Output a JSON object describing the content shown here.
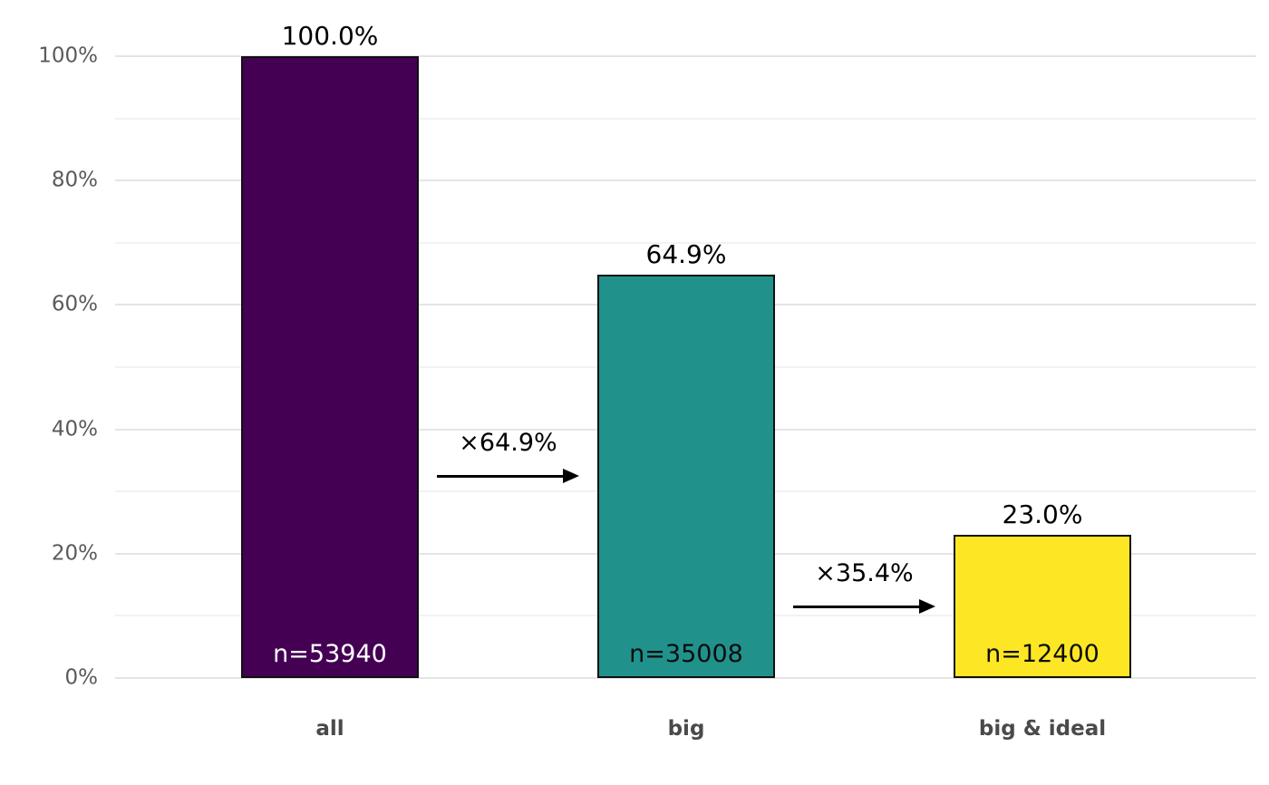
{
  "chart_data": {
    "type": "bar",
    "title": "",
    "xlabel": "",
    "ylabel": "",
    "categories": [
      "all",
      "big",
      "big & ideal"
    ],
    "values": [
      100.0,
      64.9,
      23.0
    ],
    "counts": [
      53940,
      35008,
      12400
    ],
    "bars": [
      {
        "category": "all",
        "pct": 100.0,
        "pct_label": "100.0%",
        "n_label": "n=53940",
        "color": "#440154",
        "n_label_color": "#ffffff"
      },
      {
        "category": "big",
        "pct": 64.9,
        "pct_label": "64.9%",
        "n_label": "n=35008",
        "color": "#21918c",
        "n_label_color": "#0d0d0d"
      },
      {
        "category": "big & ideal",
        "pct": 23.0,
        "pct_label": "23.0%",
        "n_label": "n=12400",
        "color": "#fde725",
        "n_label_color": "#0d0d0d"
      }
    ],
    "transitions": [
      {
        "label": "×64.9%",
        "from_bar": 0,
        "to_bar": 1
      },
      {
        "label": "×35.4%",
        "from_bar": 1,
        "to_bar": 2
      }
    ],
    "y_axis": {
      "ylim": [
        0,
        100
      ],
      "major_ticks_pct": [
        0,
        20,
        40,
        60,
        80,
        100
      ],
      "major_tick_labels": [
        "0%",
        "20%",
        "40%",
        "60%",
        "80%",
        "100%"
      ],
      "minor_ticks_pct": [
        10,
        30,
        50,
        70,
        90
      ]
    },
    "legend": "none",
    "grid": "horizontal",
    "colors": {
      "background": "#ffffff",
      "bar_border": "#101010",
      "major_grid": "#e4e4e4",
      "minor_grid": "#f2f2f2",
      "tick_label": "#5a5a5a",
      "category_label": "#4a4a4a",
      "value_label": "#000000",
      "arrow": "#000000"
    }
  }
}
